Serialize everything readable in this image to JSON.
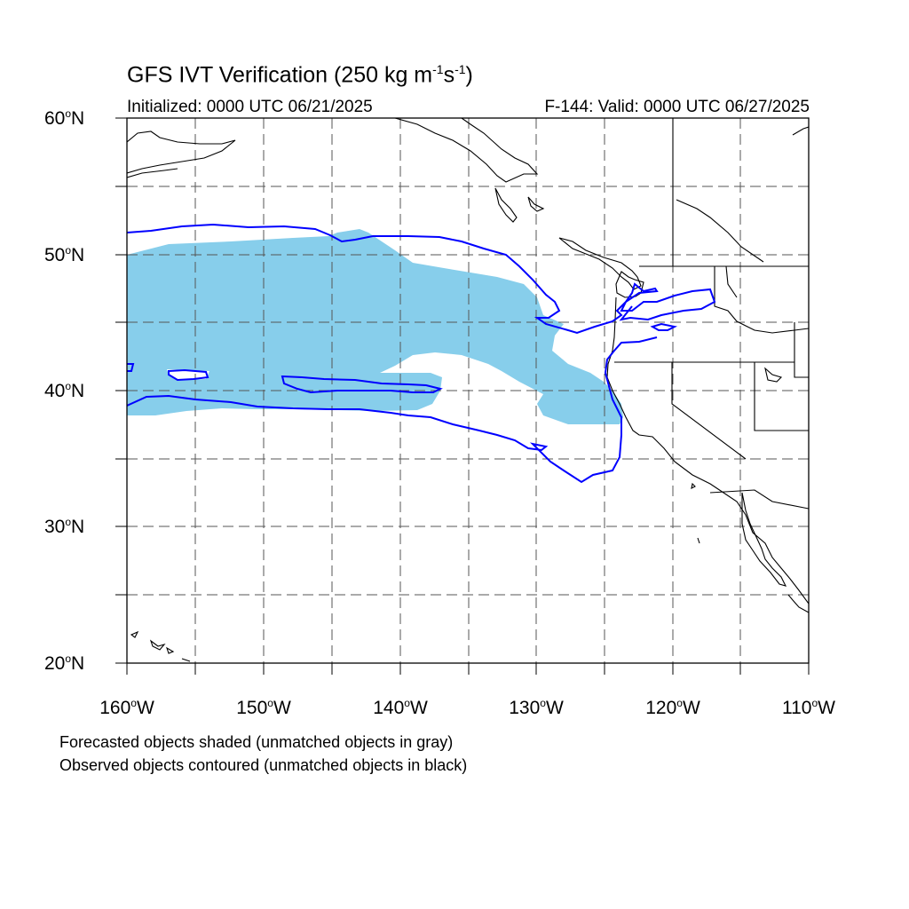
{
  "title": {
    "main": "GFS IVT Verification (250 kg m",
    "exp1": "-1",
    "mid": "s",
    "exp2": "-1",
    "end": ")"
  },
  "subtitle_left": "Initialized: 0000 UTC 06/21/2025",
  "subtitle_right": "F-144: Valid: 0000 UTC 06/27/2025",
  "lat_labels": [
    {
      "num": "60",
      "hemi": "N"
    },
    {
      "num": "50",
      "hemi": "N"
    },
    {
      "num": "40",
      "hemi": "N"
    },
    {
      "num": "30",
      "hemi": "N"
    },
    {
      "num": "20",
      "hemi": "N"
    }
  ],
  "lon_labels": [
    {
      "num": "160",
      "hemi": "W"
    },
    {
      "num": "150",
      "hemi": "W"
    },
    {
      "num": "140",
      "hemi": "W"
    },
    {
      "num": "130",
      "hemi": "W"
    },
    {
      "num": "120",
      "hemi": "W"
    },
    {
      "num": "110",
      "hemi": "W"
    }
  ],
  "notes": [
    "Forecasted objects shaded (unmatched objects in gray)",
    "Observed objects contoured (unmatched objects in black)"
  ],
  "colors": {
    "forecast_fill": "#87ceeb",
    "observed_contour": "#0000ff",
    "coastline": "#000000",
    "grid": "#555555"
  }
}
